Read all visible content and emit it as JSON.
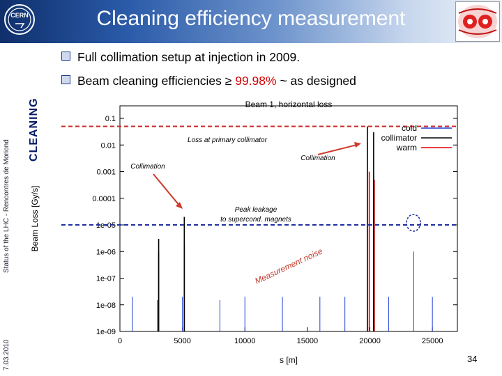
{
  "slide": {
    "title": "Cleaning efficiency measurement",
    "bullets": [
      {
        "text": "Full collimation setup at injection in 2009."
      },
      {
        "before": "Beam cleaning efficiencies ≥ ",
        "highlight": "99.98%",
        "after": " ~ as designed"
      }
    ],
    "side_status": "Status of the LHC - Rencontres de Moriond",
    "side_date": "7.03.2010",
    "side_section": "CLEANING",
    "page_number": "34",
    "logo_text": "CERN"
  },
  "annotations": {
    "loss_primary": "Loss at primary collimator",
    "collimation_left": "Collimation",
    "collimation_right": "Collimation",
    "peak_leakage_1": "Peak leakage",
    "peak_leakage_2": "to supercond. magnets",
    "measurement_noise": "Measurement noise"
  },
  "colors": {
    "cold": "#1f3fd6",
    "collimator": "#000000",
    "warm": "#e60000",
    "annotation": "#d0392b",
    "guide_red": "#cc2a2a",
    "guide_blue": "#1f2fa0"
  },
  "chart_data": {
    "type": "line",
    "title": "Beam 1, horizontal loss",
    "xlabel": "s [m]",
    "ylabel": "Beam Loss [Gy/s]",
    "xlim": [
      0,
      27000
    ],
    "ylim": [
      1e-09,
      0.2
    ],
    "log_y": true,
    "x_ticks": [
      0,
      5000,
      10000,
      15000,
      20000,
      25000
    ],
    "y_tick_labels": [
      "0.1",
      "0.01",
      "0.001",
      "0.0001",
      "1e-05",
      "1e-06",
      "1e-07",
      "1e-08",
      "1e-09"
    ],
    "y_tick_values": [
      0.1,
      0.01,
      0.001,
      0.0001,
      1e-05,
      1e-06,
      1e-07,
      1e-08,
      1e-09
    ],
    "legend_position": "top-right",
    "series": [
      {
        "name": "cold",
        "color": "#1f3fd6",
        "points": [
          [
            1000,
            2e-08
          ],
          [
            3000,
            1.5e-08
          ],
          [
            5000,
            2e-08
          ],
          [
            8000,
            1.5e-08
          ],
          [
            10000,
            2e-08
          ],
          [
            13000,
            2e-08
          ],
          [
            16000,
            2e-08
          ],
          [
            18000,
            2e-08
          ],
          [
            21500,
            2e-08
          ],
          [
            23500,
            1e-06
          ],
          [
            25000,
            2e-08
          ]
        ]
      },
      {
        "name": "collimator",
        "color": "#000000",
        "points": [
          [
            3100,
            3e-06
          ],
          [
            5150,
            2e-05
          ],
          [
            19800,
            0.05
          ],
          [
            20300,
            0.03
          ]
        ]
      },
      {
        "name": "warm",
        "color": "#e60000",
        "points": [
          [
            3100,
            1e-06
          ],
          [
            5150,
            2e-06
          ],
          [
            19950,
            0.001
          ],
          [
            20350,
            0.0005
          ]
        ]
      }
    ],
    "reference_lines": [
      {
        "label": "Loss at primary collimator",
        "y": 0.05,
        "color": "#cc2a2a"
      },
      {
        "label": "Peak leakage to supercond. magnets",
        "y": 1e-05,
        "color": "#1f2fa0"
      }
    ]
  }
}
